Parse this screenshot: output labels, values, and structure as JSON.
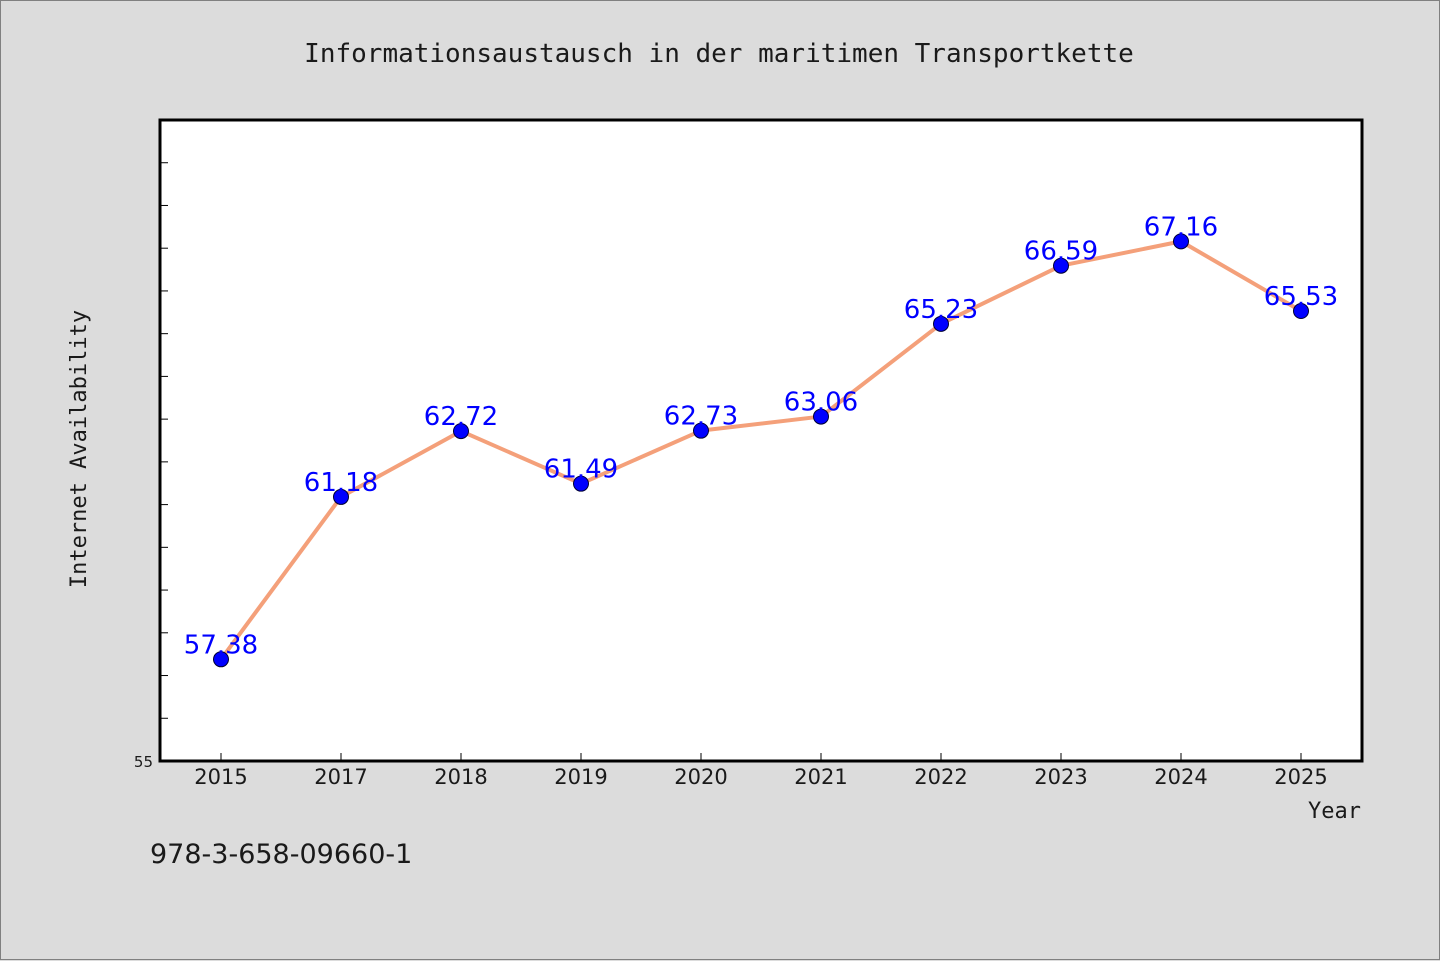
{
  "chart_data": {
    "type": "line",
    "title": "Informationsaustausch in der maritimen Transportkette",
    "xlabel": "Year",
    "ylabel": "Internet Availability",
    "categories": [
      "2015",
      "2017",
      "2018",
      "2019",
      "2020",
      "2021",
      "2022",
      "2023",
      "2024",
      "2025"
    ],
    "series": [
      {
        "values": [
          57.38,
          61.18,
          62.72,
          61.49,
          62.73,
          63.06,
          65.23,
          66.59,
          67.16,
          65.53
        ],
        "line_color": "#f4a07a",
        "marker_color": "#0000ff",
        "label_color": "#0000ff"
      }
    ],
    "ylim": [
      55,
      70
    ],
    "y_min_label": "55",
    "grid": false,
    "legend": "none"
  },
  "footer": {
    "isbn": "978-3-658-09660-1"
  },
  "colors": {
    "background": "#dcdcdc",
    "plot_background": "#ffffff",
    "axis": "#000000"
  }
}
